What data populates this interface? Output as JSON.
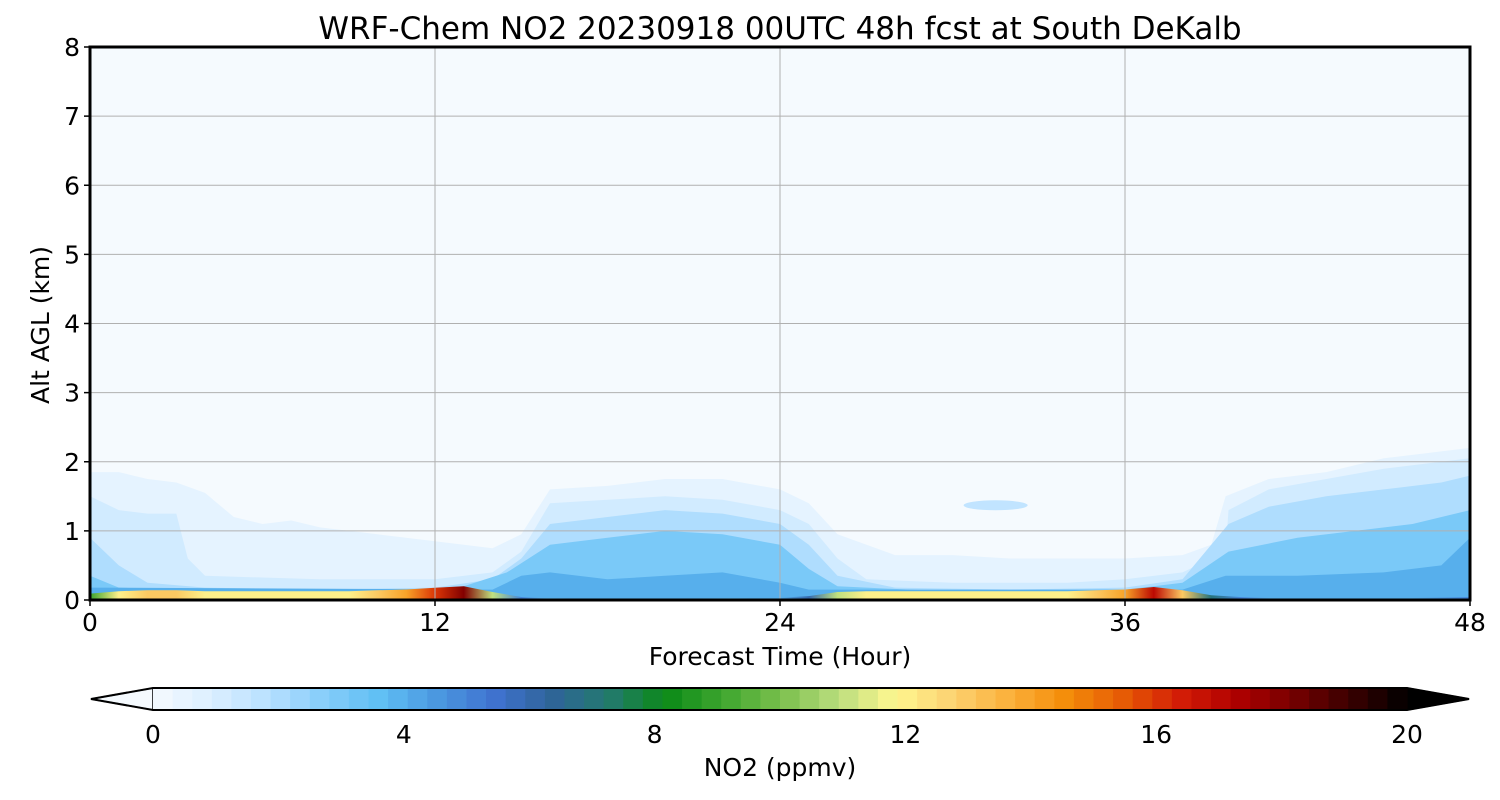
{
  "chart_data": {
    "type": "heatmap",
    "title": "WRF-Chem NO2  20230918 00UTC 48h fcst at South DeKalb",
    "xlabel": "Forecast Time (Hour)",
    "ylabel": "Alt AGL (km)",
    "xlim": [
      0,
      48
    ],
    "ylim": [
      0,
      8
    ],
    "x_ticks": [
      "0",
      "12",
      "24",
      "36",
      "48"
    ],
    "y_ticks": [
      "0",
      "1",
      "2",
      "3",
      "4",
      "5",
      "6",
      "7",
      "8"
    ],
    "grid": true,
    "surface_layer_no2_ppmv": {
      "x": [
        0,
        1,
        2,
        3,
        4,
        5,
        6,
        7,
        8,
        9,
        10,
        11,
        12,
        13,
        14,
        15,
        16,
        17,
        18,
        19,
        20,
        21,
        22,
        23,
        24,
        25,
        26,
        27,
        28,
        29,
        30,
        31,
        32,
        33,
        34,
        35,
        36,
        37,
        38,
        39,
        40,
        41,
        42,
        43,
        44,
        45,
        46,
        47,
        48
      ],
      "values": [
        9,
        12,
        13,
        13,
        12,
        12,
        12,
        12,
        12,
        12,
        13,
        14,
        16,
        18,
        11,
        5,
        3.5,
        3,
        3,
        3,
        3,
        3.2,
        3.5,
        4,
        4,
        6,
        11,
        12,
        12,
        12,
        12,
        12,
        12,
        12,
        12,
        13,
        14,
        17,
        13,
        7,
        5,
        4,
        4,
        4,
        4,
        4,
        4,
        4.5,
        5
      ]
    },
    "colorbar": {
      "label": "NO2  (ppmv)",
      "ticks": [
        "0",
        "4",
        "8",
        "12",
        "16",
        "20"
      ],
      "range": [
        0,
        20
      ],
      "extend": "both",
      "colors": [
        "#f5fafe",
        "#dcefff",
        "#b9e1ff",
        "#86cdfa",
        "#5fbff4",
        "#4b97e0",
        "#3f72cf",
        "#2f6498",
        "#237a6e",
        "#0b8a17",
        "#3ea62f",
        "#79bf4c",
        "#b9dd7d",
        "#fef790",
        "#fcd373",
        "#fbb13c",
        "#f48d0a",
        "#e65c05",
        "#d41d06",
        "#b00000",
        "#760000",
        "#3a0000",
        "#000000"
      ]
    }
  }
}
